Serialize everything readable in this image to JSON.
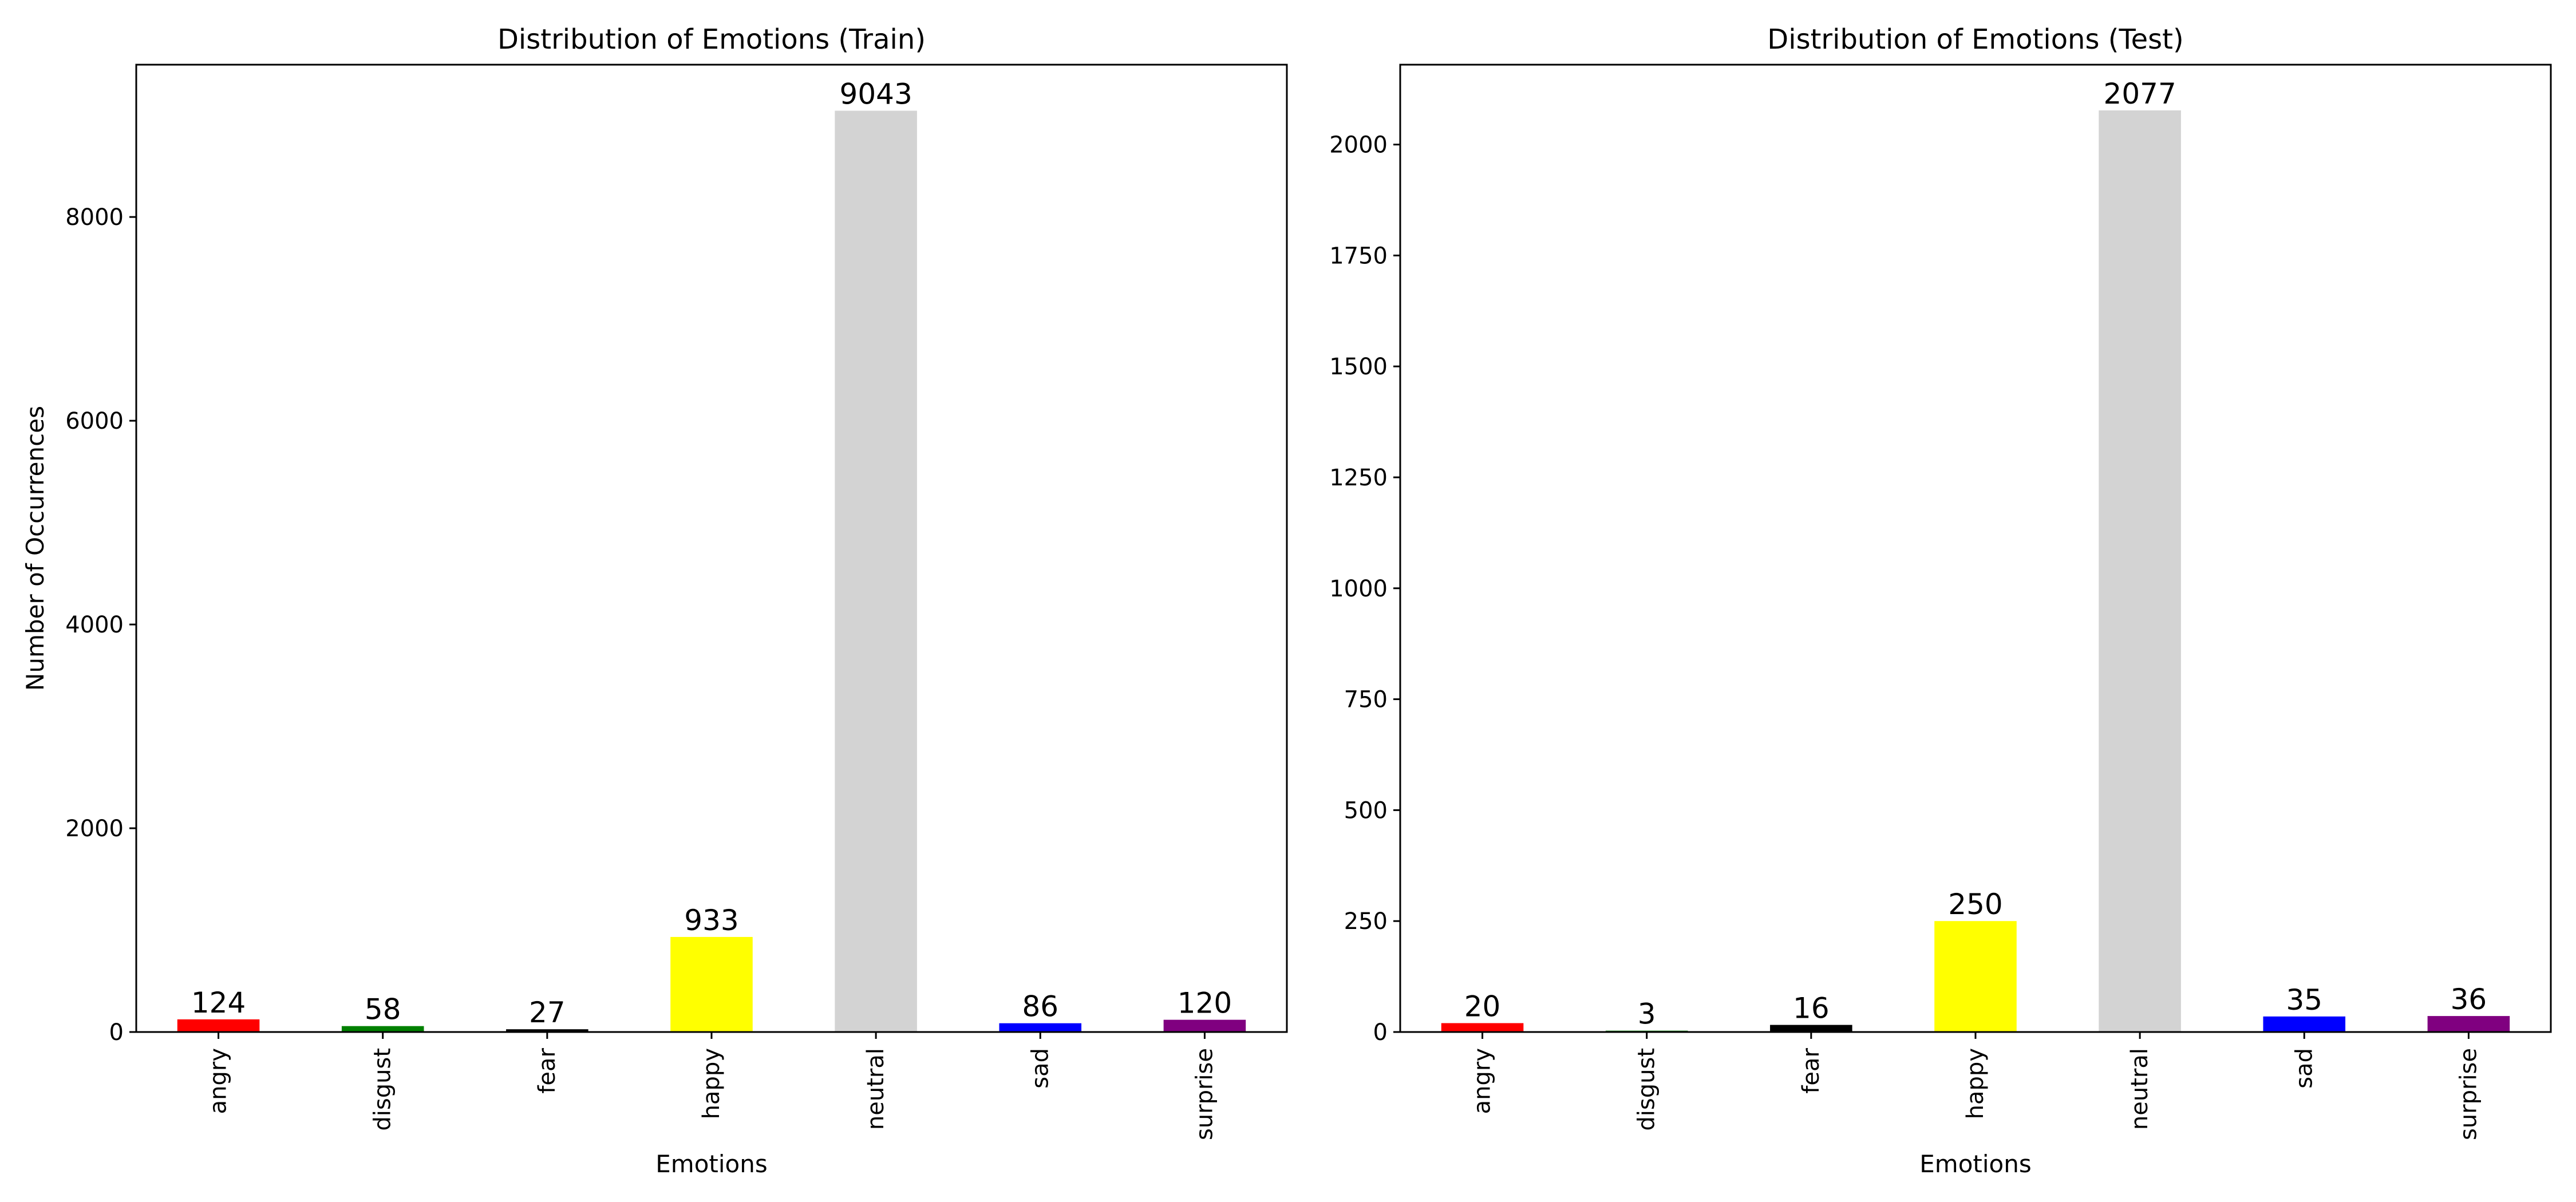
{
  "chart_data": [
    {
      "type": "bar",
      "title": "Distribution of Emotions (Train)",
      "xlabel": "Emotions",
      "ylabel": "Number of Occurrences",
      "categories": [
        "angry",
        "disgust",
        "fear",
        "happy",
        "neutral",
        "sad",
        "surprise"
      ],
      "values": [
        124,
        58,
        27,
        933,
        9043,
        86,
        120
      ],
      "colors": [
        "#ff0000",
        "#008000",
        "#000000",
        "#ffff00",
        "#d3d3d3",
        "#0000ff",
        "#800080"
      ],
      "ylim": [
        0,
        9495
      ],
      "yticks": [
        0,
        2000,
        4000,
        6000,
        8000
      ],
      "grid": false
    },
    {
      "type": "bar",
      "title": "Distribution of Emotions (Test)",
      "xlabel": "Emotions",
      "ylabel": "",
      "categories": [
        "angry",
        "disgust",
        "fear",
        "happy",
        "neutral",
        "sad",
        "surprise"
      ],
      "values": [
        20,
        3,
        16,
        250,
        2077,
        35,
        36
      ],
      "colors": [
        "#ff0000",
        "#008000",
        "#000000",
        "#ffff00",
        "#d3d3d3",
        "#0000ff",
        "#800080"
      ],
      "ylim": [
        0,
        2180
      ],
      "yticks": [
        0,
        250,
        500,
        750,
        1000,
        1250,
        1500,
        1750,
        2000
      ],
      "grid": false
    }
  ]
}
